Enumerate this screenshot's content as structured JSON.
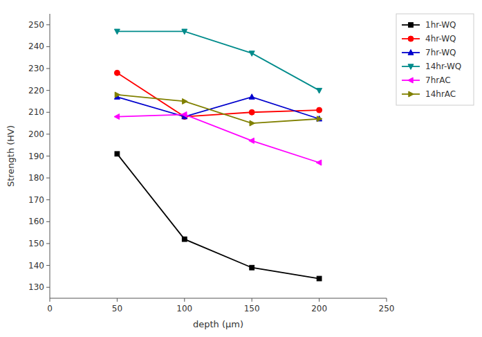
{
  "chart_data": {
    "type": "line",
    "xlabel": "depth (μm)",
    "ylabel": "Strength (HV)",
    "x": [
      50,
      100,
      150,
      200
    ],
    "series": [
      {
        "name": "1hr-WQ",
        "color": "#000000",
        "marker": "square",
        "values": [
          191,
          152,
          139,
          134
        ]
      },
      {
        "name": "4hr-WQ",
        "color": "#ff0000",
        "marker": "circle",
        "values": [
          228,
          208,
          210,
          211
        ]
      },
      {
        "name": "7hr-WQ",
        "color": "#0000cd",
        "marker": "triangle-up",
        "values": [
          217,
          208,
          217,
          207
        ]
      },
      {
        "name": "14hr-WQ",
        "color": "#008b8b",
        "marker": "triangle-down",
        "values": [
          247,
          247,
          237,
          220
        ]
      },
      {
        "name": "7hrAC",
        "color": "#ff00ff",
        "marker": "triangle-left",
        "values": [
          208,
          209,
          197,
          187
        ]
      },
      {
        "name": "14hrAC",
        "color": "#808000",
        "marker": "triangle-right",
        "values": [
          218,
          215,
          205,
          207
        ]
      }
    ],
    "xlim": [
      0,
      250
    ],
    "ylim": [
      125,
      255
    ],
    "xticks": [
      0,
      50,
      100,
      150,
      200,
      250
    ],
    "yticks": [
      130,
      140,
      150,
      160,
      170,
      180,
      190,
      200,
      210,
      220,
      230,
      240,
      250
    ],
    "grid": false,
    "legend": "upper right"
  }
}
